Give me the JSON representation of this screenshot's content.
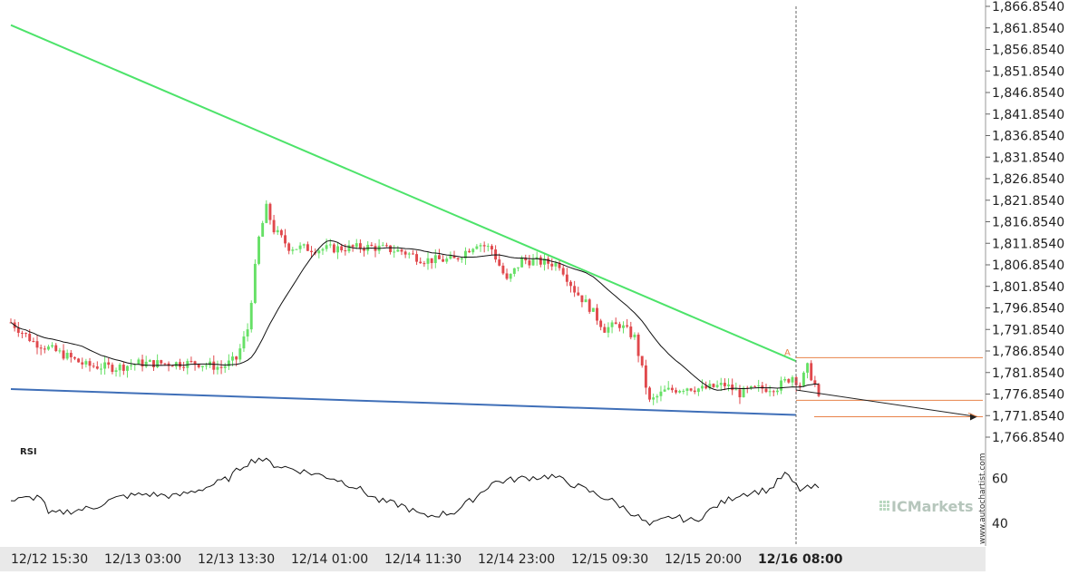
{
  "colors": {
    "up": "#66e066",
    "down": "#e0484c",
    "resistance": "#4de36a",
    "support": "#3f6fb8",
    "projection": "#e8834a",
    "ma": "#111111",
    "rsi": "#111111",
    "axis_text": "#222222",
    "bottom_bar": "#e9e9e9"
  },
  "watermark": {
    "brand": "ICMarkets",
    "vertical": "www.autochartist.com"
  },
  "pattern_label": "A",
  "rsi_label": "RSI",
  "chart_data": [
    {
      "type": "candlestick",
      "ylim": [
        1766.854,
        1866.854
      ],
      "y_ticks": [
        "1,866.8540",
        "1,861.8540",
        "1,856.8540",
        "1,851.8540",
        "1,846.8540",
        "1,841.8540",
        "1,836.8540",
        "1,831.8540",
        "1,826.8540",
        "1,821.8540",
        "1,816.8540",
        "1,811.8540",
        "1,806.8540",
        "1,801.8540",
        "1,796.8540",
        "1,791.8540",
        "1,786.8540",
        "1,781.8540",
        "1,776.8540",
        "1,771.8540",
        "1,766.8540"
      ],
      "x_ticks": [
        {
          "label": "12/12  15:30",
          "bold": false
        },
        {
          "label": "12/13  03:00",
          "bold": false
        },
        {
          "label": "12/13  13:30",
          "bold": false
        },
        {
          "label": "12/14  01:00",
          "bold": false
        },
        {
          "label": "12/14  11:30",
          "bold": false
        },
        {
          "label": "12/14  23:00",
          "bold": false
        },
        {
          "label": "12/15  09:30",
          "bold": false
        },
        {
          "label": "12/15  20:00",
          "bold": false
        },
        {
          "label": "12/16  08:00",
          "bold": true
        }
      ],
      "candles_count": 216,
      "pattern": {
        "name": "descending wedge",
        "resistance": {
          "from": 1862.5,
          "to": 1784.5
        },
        "support": {
          "from": 1778.0,
          "to": 1772.0
        },
        "levels": [
          1785.3,
          1775.4,
          1771.6
        ]
      }
    },
    {
      "type": "line",
      "title": "RSI",
      "ylim": [
        30,
        75
      ],
      "y_ticks": [
        "60",
        "40"
      ]
    }
  ]
}
